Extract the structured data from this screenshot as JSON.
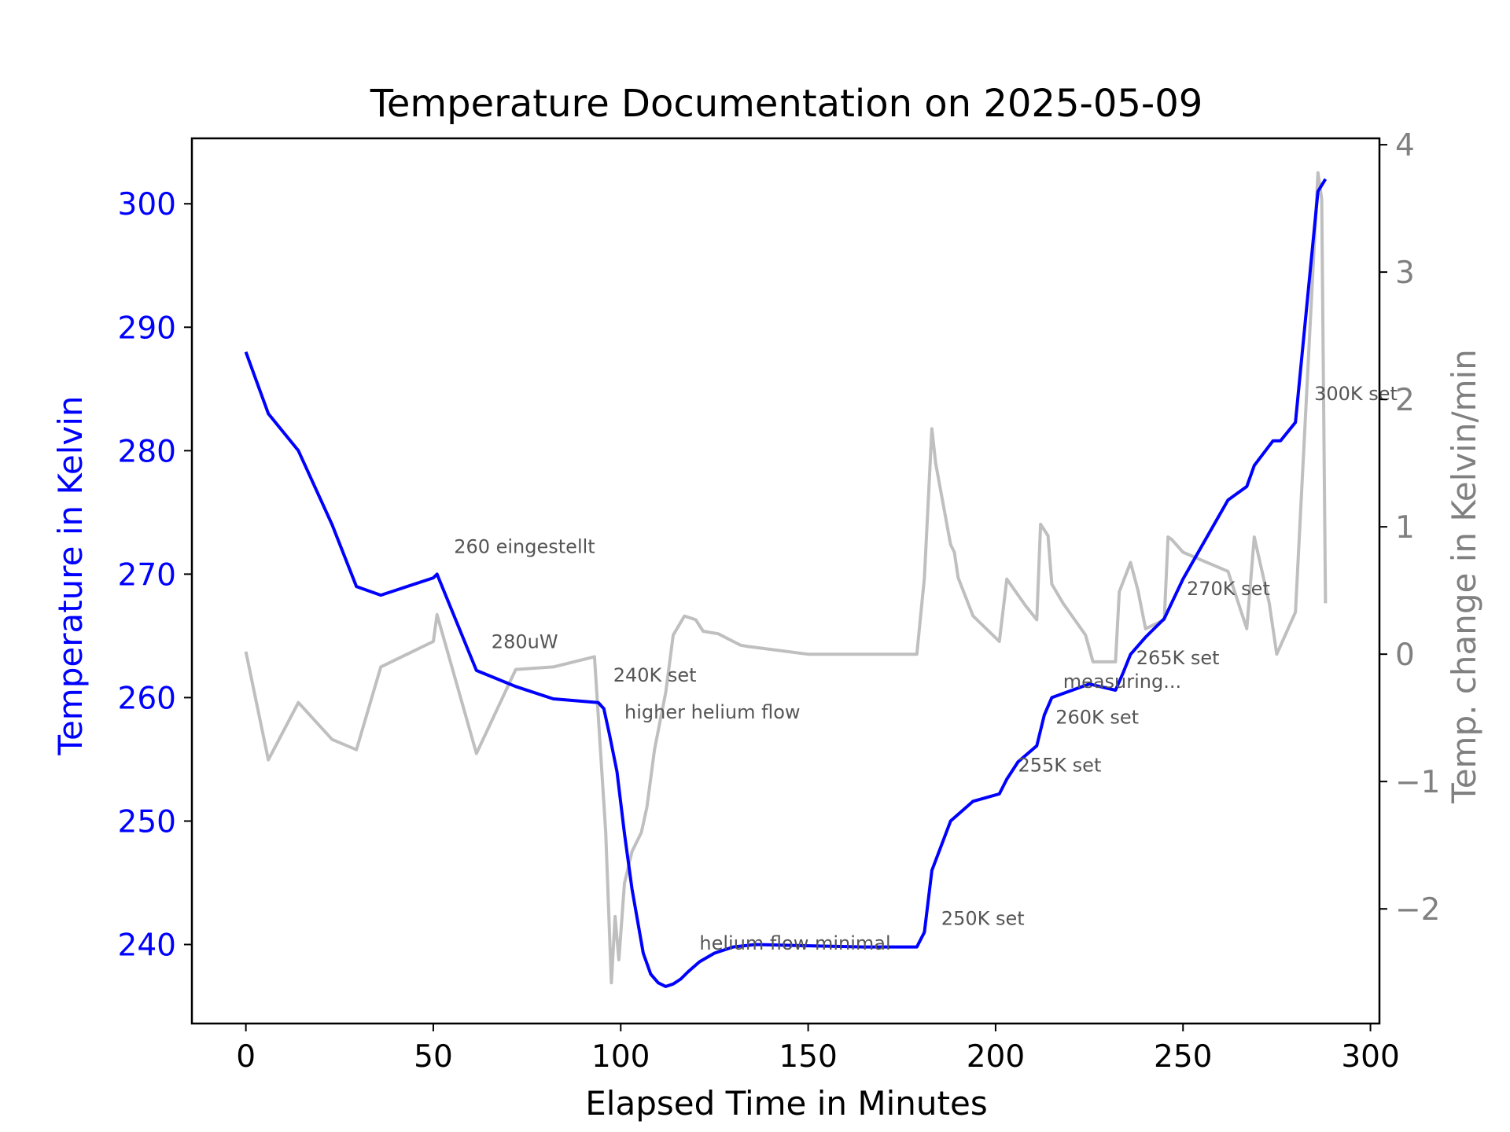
{
  "chart_data": {
    "type": "line",
    "title": "Temperature Documentation on 2025-05-09",
    "xlabel": "Elapsed Time in Minutes",
    "ylabel": "Temperature in Kelvin",
    "y2label": "Temp. change in Kelvin/min",
    "xlim": [
      -14.4,
      302.4
    ],
    "ylim": [
      233.6,
      305.3
    ],
    "y2lim": [
      -2.9,
      4.05
    ],
    "xticks": [
      0,
      50,
      100,
      150,
      200,
      250,
      300
    ],
    "yticks": [
      240,
      250,
      260,
      270,
      280,
      290,
      300
    ],
    "y2ticks": [
      -2,
      -1,
      0,
      1,
      2,
      3,
      4
    ],
    "y2tick_labels": [
      "−2",
      "−1",
      "0",
      "1",
      "2",
      "3",
      "4"
    ],
    "grid": false,
    "colors": {
      "temperature": "#0000ff",
      "rate": "#bfbfbf",
      "y2axis": "#808080",
      "annotation": "#555555"
    },
    "series": [
      {
        "axis": "left",
        "x": [
          0,
          6,
          14,
          23,
          29.5,
          36,
          50,
          51,
          61.5,
          72,
          82,
          94,
          95.5,
          97,
          99,
          101,
          103,
          106,
          108,
          110,
          112,
          114,
          116,
          118,
          121,
          125,
          130,
          136,
          150,
          165,
          179,
          181,
          183,
          188,
          194,
          201,
          203,
          206,
          211,
          213,
          215,
          225,
          232,
          234,
          236,
          240,
          245,
          250,
          262,
          267,
          269,
          274,
          276,
          280,
          286,
          288
        ],
        "y": [
          288,
          283,
          280,
          274,
          269,
          268.3,
          269.7,
          270,
          262.2,
          260.9,
          259.9,
          259.6,
          259.1,
          257,
          254,
          249,
          244.5,
          239.3,
          237.6,
          236.9,
          236.6,
          236.8,
          237.2,
          237.8,
          238.6,
          239.3,
          239.8,
          240,
          239.9,
          239.8,
          239.8,
          241,
          246,
          250,
          251.6,
          252.2,
          253.4,
          254.8,
          256.1,
          258.6,
          260,
          261.1,
          260.6,
          262,
          263.5,
          264.9,
          266.4,
          269.6,
          276,
          277.1,
          278.8,
          280.8,
          280.8,
          282.3,
          301,
          302
        ]
      },
      {
        "axis": "right",
        "x": [
          0,
          6,
          14,
          23,
          29.5,
          36,
          50,
          51,
          61.5,
          72,
          82,
          93,
          96,
          97.5,
          98.5,
          99.5,
          101,
          103,
          105.5,
          107,
          109,
          112,
          114,
          117,
          120,
          122,
          126,
          130,
          132,
          134,
          150,
          165,
          179,
          181,
          183,
          184,
          188,
          189,
          190,
          194,
          201,
          203,
          208,
          211,
          212,
          214,
          215,
          218,
          224,
          226,
          232,
          233,
          236,
          238,
          240,
          245,
          246,
          247,
          250,
          262,
          267,
          269,
          273,
          275,
          280,
          286,
          287,
          288
        ],
        "y": [
          0.02,
          -0.83,
          -0.38,
          -0.67,
          -0.75,
          -0.1,
          0.1,
          0.31,
          -0.78,
          -0.12,
          -0.1,
          -0.02,
          -1.4,
          -2.58,
          -2.06,
          -2.4,
          -1.8,
          -1.55,
          -1.4,
          -1.2,
          -0.75,
          -0.3,
          0.15,
          0.3,
          0.27,
          0.18,
          0.16,
          0.1,
          0.07,
          0.06,
          0.0,
          0.0,
          0.0,
          0.6,
          1.77,
          1.5,
          0.86,
          0.8,
          0.6,
          0.3,
          0.1,
          0.59,
          0.38,
          0.27,
          1.02,
          0.93,
          0.55,
          0.4,
          0.15,
          -0.06,
          -0.06,
          0.49,
          0.72,
          0.5,
          0.2,
          0.27,
          0.92,
          0.9,
          0.8,
          0.65,
          0.2,
          0.92,
          0.4,
          0.0,
          0.33,
          3.78,
          3.57,
          0.4
        ]
      }
    ],
    "annotations": [
      {
        "text": "260 eingestellt",
        "x": 55.5,
        "y": 271.7
      },
      {
        "text": "280uW",
        "x": 65.5,
        "y": 264
      },
      {
        "text": "240K set",
        "x": 98,
        "y": 261.3
      },
      {
        "text": "higher helium flow",
        "x": 101,
        "y": 258.3
      },
      {
        "text": "helium flow minimal",
        "x": 121,
        "y": 239.6
      },
      {
        "text": "250K set",
        "x": 185.5,
        "y": 241.6
      },
      {
        "text": "255K set",
        "x": 206,
        "y": 254
      },
      {
        "text": "260K set",
        "x": 216,
        "y": 257.9
      },
      {
        "text": "measuring...",
        "x": 218,
        "y": 260.8
      },
      {
        "text": "265K set",
        "x": 237.5,
        "y": 262.7
      },
      {
        "text": "270K set",
        "x": 251,
        "y": 268.3
      },
      {
        "text": "300K set",
        "x": 285,
        "y": 284.1
      }
    ]
  }
}
